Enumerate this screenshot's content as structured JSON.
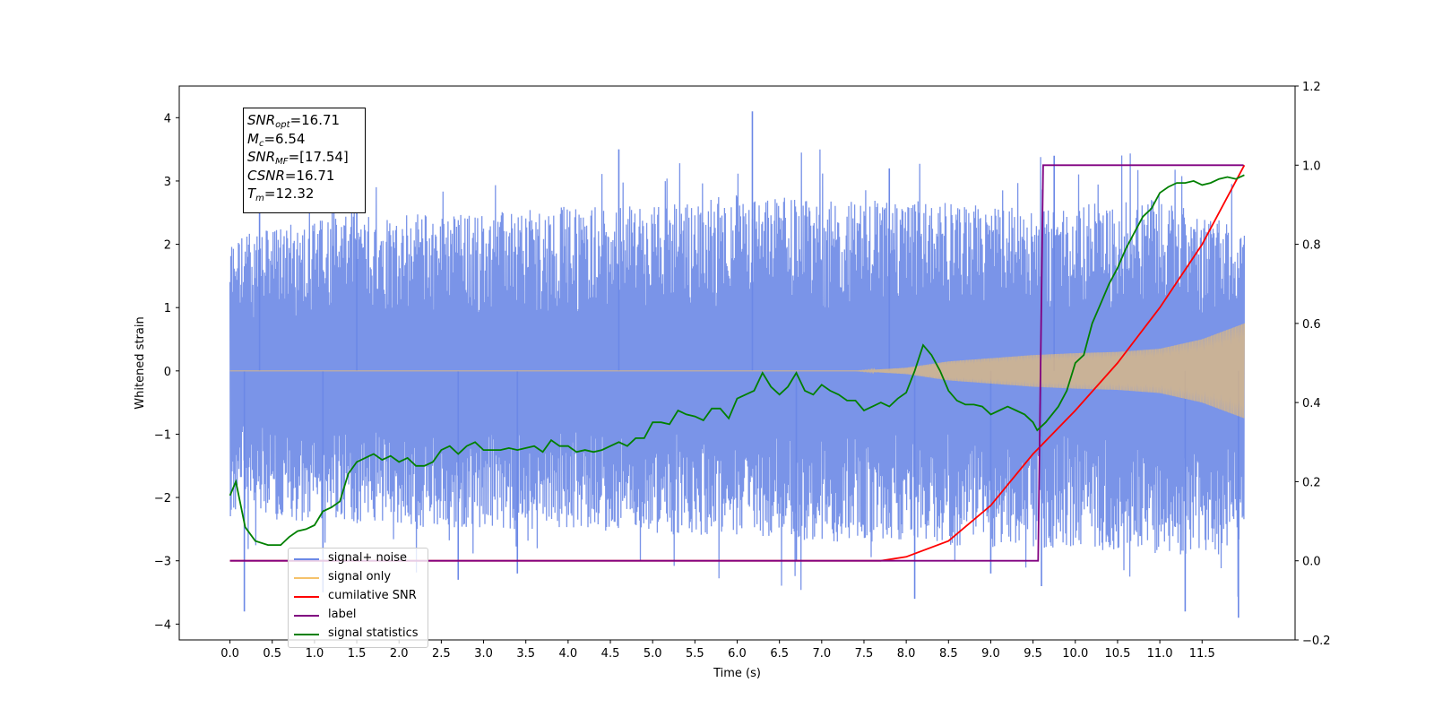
{
  "chart_data": {
    "type": "line",
    "xlabel": "Time (s)",
    "ylabel": "Whitened strain",
    "xlim": [
      -0.6,
      12.6
    ],
    "ylim": [
      -4.25,
      4.5
    ],
    "ylim_right": [
      -0.2,
      1.2
    ],
    "x_ticks": [
      0.0,
      0.5,
      1.0,
      1.5,
      2.0,
      2.5,
      3.0,
      3.5,
      4.0,
      4.5,
      5.0,
      5.5,
      6.0,
      6.5,
      7.0,
      7.5,
      8.0,
      8.5,
      9.0,
      9.5,
      10.0,
      10.5,
      11.0,
      11.5
    ],
    "x_tick_labels": [
      "0.0",
      "0.5",
      "1.0",
      "1.5",
      "2.0",
      "2.5",
      "3.0",
      "3.5",
      "4.0",
      "4.5",
      "5.0",
      "5.5",
      "6.0",
      "6.5",
      "7.0",
      "7.5",
      "8.0",
      "8.5",
      "9.0",
      "9.5",
      "10.0",
      "10.5",
      "11.0",
      "11.5"
    ],
    "y_ticks": [
      -4,
      -3,
      -2,
      -1,
      0,
      1,
      2,
      3,
      4
    ],
    "y_tick_labels": [
      "−4",
      "−3",
      "−2",
      "−1",
      "0",
      "1",
      "2",
      "3",
      "4"
    ],
    "y_right_ticks": [
      -0.2,
      0.0,
      0.2,
      0.4,
      0.6,
      0.8,
      1.0,
      1.2
    ],
    "y_right_tick_labels": [
      "−0.2",
      "0.0",
      "0.2",
      "0.4",
      "0.6",
      "0.8",
      "1.0",
      "1.2"
    ],
    "grid": false,
    "legend_placement": "lower-left",
    "series": [
      {
        "name": "signal+ noise",
        "axis": "left",
        "color": "#6b88e6",
        "style": "noise band",
        "x_range": [
          0.0,
          12.0
        ],
        "band_top": [
          [
            0.0,
            2.1
          ],
          [
            1.0,
            2.4
          ],
          [
            2.0,
            2.5
          ],
          [
            3.0,
            2.5
          ],
          [
            4.0,
            2.6
          ],
          [
            5.0,
            2.6
          ],
          [
            6.0,
            2.8
          ],
          [
            7.0,
            2.7
          ],
          [
            8.0,
            2.7
          ],
          [
            9.0,
            2.6
          ],
          [
            10.0,
            2.6
          ],
          [
            11.0,
            2.8
          ],
          [
            12.0,
            2.2
          ]
        ],
        "band_bottom": [
          [
            0.0,
            -2.3
          ],
          [
            1.0,
            -2.4
          ],
          [
            2.0,
            -2.5
          ],
          [
            3.0,
            -2.5
          ],
          [
            4.0,
            -2.5
          ],
          [
            5.0,
            -2.6
          ],
          [
            6.0,
            -2.6
          ],
          [
            7.0,
            -2.7
          ],
          [
            8.0,
            -2.7
          ],
          [
            9.0,
            -2.8
          ],
          [
            10.0,
            -2.8
          ],
          [
            11.0,
            -2.9
          ],
          [
            12.0,
            -2.9
          ]
        ],
        "spikes": [
          [
            0.17,
            -3.8
          ],
          [
            0.35,
            2.8
          ],
          [
            1.1,
            -3.5
          ],
          [
            1.5,
            3.0
          ],
          [
            2.7,
            -3.3
          ],
          [
            3.4,
            -3.2
          ],
          [
            4.6,
            3.5
          ],
          [
            6.18,
            4.1
          ],
          [
            6.7,
            -3.0
          ],
          [
            7.8,
            3.2
          ],
          [
            8.1,
            -3.6
          ],
          [
            9.0,
            -3.2
          ],
          [
            9.6,
            -3.4
          ],
          [
            9.75,
            3.4
          ],
          [
            11.3,
            -3.8
          ],
          [
            11.93,
            -3.9
          ]
        ]
      },
      {
        "name": "signal only",
        "axis": "left",
        "color": "#f5c26b",
        "style": "chirp",
        "envelope": [
          [
            0.0,
            0.0
          ],
          [
            7.4,
            0.0
          ],
          [
            8.0,
            0.05
          ],
          [
            8.5,
            0.15
          ],
          [
            9.0,
            0.2
          ],
          [
            9.5,
            0.25
          ],
          [
            10.0,
            0.28
          ],
          [
            10.5,
            0.3
          ],
          [
            11.0,
            0.35
          ],
          [
            11.5,
            0.5
          ],
          [
            12.0,
            0.75
          ]
        ]
      },
      {
        "name": "cumilative SNR",
        "axis": "right",
        "color": "#ff0000",
        "points": [
          [
            0.0,
            0.0
          ],
          [
            7.7,
            0.0
          ],
          [
            8.0,
            0.01
          ],
          [
            8.5,
            0.05
          ],
          [
            9.0,
            0.14
          ],
          [
            9.5,
            0.27
          ],
          [
            10.0,
            0.38
          ],
          [
            10.5,
            0.5
          ],
          [
            11.0,
            0.64
          ],
          [
            11.5,
            0.8
          ],
          [
            12.0,
            1.0
          ]
        ]
      },
      {
        "name": "label",
        "axis": "right",
        "color": "#800080",
        "points": [
          [
            0.0,
            0.0
          ],
          [
            9.56,
            0.0
          ],
          [
            9.62,
            1.0
          ],
          [
            11.99,
            1.0
          ]
        ]
      },
      {
        "name": "signal statistics",
        "axis": "right",
        "color": "#008000",
        "points": [
          [
            0.0,
            0.165
          ],
          [
            0.07,
            0.2
          ],
          [
            0.18,
            0.085
          ],
          [
            0.3,
            0.05
          ],
          [
            0.45,
            0.04
          ],
          [
            0.6,
            0.04
          ],
          [
            0.7,
            0.06
          ],
          [
            0.8,
            0.075
          ],
          [
            0.9,
            0.08
          ],
          [
            1.0,
            0.09
          ],
          [
            1.1,
            0.125
          ],
          [
            1.2,
            0.135
          ],
          [
            1.3,
            0.15
          ],
          [
            1.4,
            0.22
          ],
          [
            1.5,
            0.25
          ],
          [
            1.6,
            0.26
          ],
          [
            1.7,
            0.27
          ],
          [
            1.8,
            0.255
          ],
          [
            1.9,
            0.265
          ],
          [
            2.0,
            0.25
          ],
          [
            2.1,
            0.26
          ],
          [
            2.2,
            0.24
          ],
          [
            2.3,
            0.24
          ],
          [
            2.4,
            0.25
          ],
          [
            2.5,
            0.28
          ],
          [
            2.6,
            0.29
          ],
          [
            2.7,
            0.27
          ],
          [
            2.8,
            0.29
          ],
          [
            2.9,
            0.3
          ],
          [
            3.0,
            0.28
          ],
          [
            3.1,
            0.28
          ],
          [
            3.2,
            0.28
          ],
          [
            3.3,
            0.285
          ],
          [
            3.4,
            0.28
          ],
          [
            3.5,
            0.285
          ],
          [
            3.6,
            0.29
          ],
          [
            3.7,
            0.275
          ],
          [
            3.8,
            0.305
          ],
          [
            3.9,
            0.29
          ],
          [
            4.0,
            0.29
          ],
          [
            4.1,
            0.275
          ],
          [
            4.2,
            0.28
          ],
          [
            4.3,
            0.275
          ],
          [
            4.4,
            0.28
          ],
          [
            4.5,
            0.29
          ],
          [
            4.6,
            0.3
          ],
          [
            4.7,
            0.29
          ],
          [
            4.8,
            0.31
          ],
          [
            4.9,
            0.31
          ],
          [
            5.0,
            0.35
          ],
          [
            5.1,
            0.35
          ],
          [
            5.2,
            0.345
          ],
          [
            5.3,
            0.38
          ],
          [
            5.4,
            0.37
          ],
          [
            5.5,
            0.365
          ],
          [
            5.6,
            0.355
          ],
          [
            5.7,
            0.385
          ],
          [
            5.8,
            0.385
          ],
          [
            5.9,
            0.36
          ],
          [
            6.0,
            0.41
          ],
          [
            6.1,
            0.42
          ],
          [
            6.2,
            0.43
          ],
          [
            6.3,
            0.475
          ],
          [
            6.4,
            0.44
          ],
          [
            6.5,
            0.42
          ],
          [
            6.6,
            0.44
          ],
          [
            6.7,
            0.475
          ],
          [
            6.8,
            0.43
          ],
          [
            6.9,
            0.42
          ],
          [
            7.0,
            0.445
          ],
          [
            7.1,
            0.43
          ],
          [
            7.2,
            0.42
          ],
          [
            7.3,
            0.405
          ],
          [
            7.4,
            0.405
          ],
          [
            7.5,
            0.38
          ],
          [
            7.6,
            0.39
          ],
          [
            7.7,
            0.4
          ],
          [
            7.8,
            0.39
          ],
          [
            7.9,
            0.41
          ],
          [
            8.0,
            0.425
          ],
          [
            8.1,
            0.48
          ],
          [
            8.2,
            0.545
          ],
          [
            8.3,
            0.52
          ],
          [
            8.4,
            0.48
          ],
          [
            8.5,
            0.43
          ],
          [
            8.6,
            0.405
          ],
          [
            8.7,
            0.395
          ],
          [
            8.8,
            0.395
          ],
          [
            8.9,
            0.39
          ],
          [
            9.0,
            0.37
          ],
          [
            9.1,
            0.38
          ],
          [
            9.2,
            0.39
          ],
          [
            9.3,
            0.38
          ],
          [
            9.4,
            0.37
          ],
          [
            9.5,
            0.35
          ],
          [
            9.55,
            0.33
          ],
          [
            9.65,
            0.35
          ],
          [
            9.8,
            0.39
          ],
          [
            9.9,
            0.43
          ],
          [
            10.0,
            0.5
          ],
          [
            10.1,
            0.52
          ],
          [
            10.2,
            0.6
          ],
          [
            10.3,
            0.65
          ],
          [
            10.4,
            0.7
          ],
          [
            10.5,
            0.74
          ],
          [
            10.6,
            0.79
          ],
          [
            10.7,
            0.83
          ],
          [
            10.8,
            0.87
          ],
          [
            10.9,
            0.89
          ],
          [
            11.0,
            0.93
          ],
          [
            11.1,
            0.945
          ],
          [
            11.2,
            0.955
          ],
          [
            11.3,
            0.955
          ],
          [
            11.4,
            0.96
          ],
          [
            11.5,
            0.95
          ],
          [
            11.6,
            0.955
          ],
          [
            11.7,
            0.965
          ],
          [
            11.8,
            0.97
          ],
          [
            11.9,
            0.965
          ],
          [
            12.0,
            0.975
          ]
        ]
      }
    ],
    "annotation_box": [
      {
        "symbol": "SNR",
        "sub": "opt",
        "value": "=16.71"
      },
      {
        "symbol": "M",
        "sub": "c",
        "value": "=6.54"
      },
      {
        "symbol": "SNR",
        "sub": "MF",
        "value": "=[17.54]"
      },
      {
        "symbol": "CSNR",
        "sub": "",
        "value": "=16.71"
      },
      {
        "symbol": "T",
        "sub": "m",
        "value": "=12.32"
      }
    ],
    "legend": [
      {
        "label": "signal+ noise",
        "color": "#6b88e6"
      },
      {
        "label": "signal only",
        "color": "#f5c26b"
      },
      {
        "label": "cumilative SNR",
        "color": "#ff0000"
      },
      {
        "label": "label",
        "color": "#800080"
      },
      {
        "label": "signal statistics",
        "color": "#008000"
      }
    ]
  }
}
